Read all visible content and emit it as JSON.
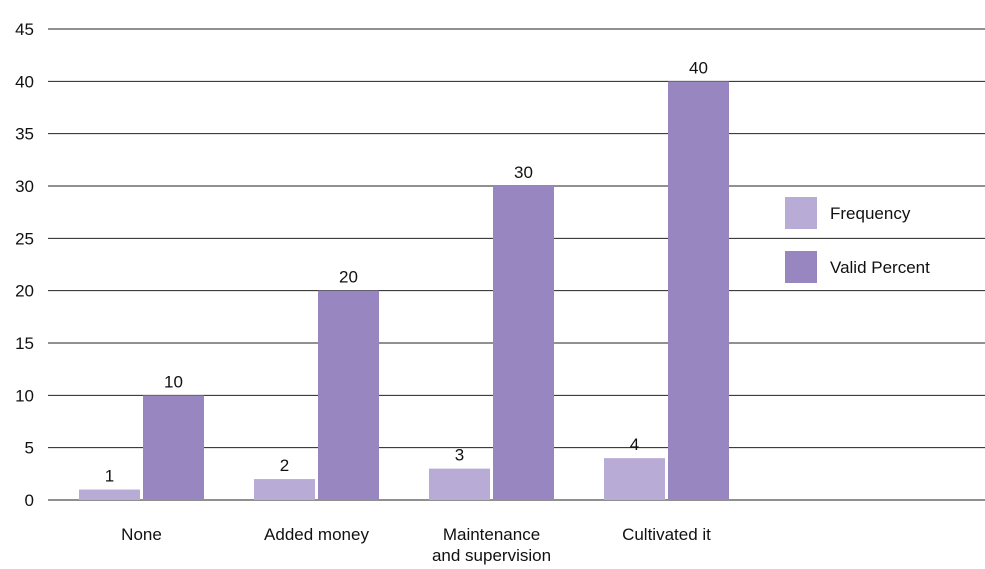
{
  "chart_data": {
    "type": "bar",
    "title": "",
    "xlabel": "",
    "ylabel": "",
    "ylim": [
      0,
      45
    ],
    "yticks": [
      "0",
      "5",
      "10",
      "15",
      "20",
      "25",
      "30",
      "35",
      "40",
      "45"
    ],
    "categories": [
      [
        "None"
      ],
      [
        "Added money"
      ],
      [
        "Maintenance",
        "and supervision"
      ],
      [
        "Cultivated it"
      ]
    ],
    "series": [
      {
        "name": "Frequency",
        "color": "#b8acd6",
        "values": [
          1,
          2,
          3,
          4
        ],
        "labels": [
          "1",
          "2",
          "3",
          "4"
        ]
      },
      {
        "name": "Valid Percent",
        "color": "#9886c0",
        "values": [
          10,
          20,
          30,
          40
        ],
        "labels": [
          "10",
          "20",
          "30",
          "40"
        ]
      }
    ],
    "grid": true,
    "legend": "right"
  }
}
